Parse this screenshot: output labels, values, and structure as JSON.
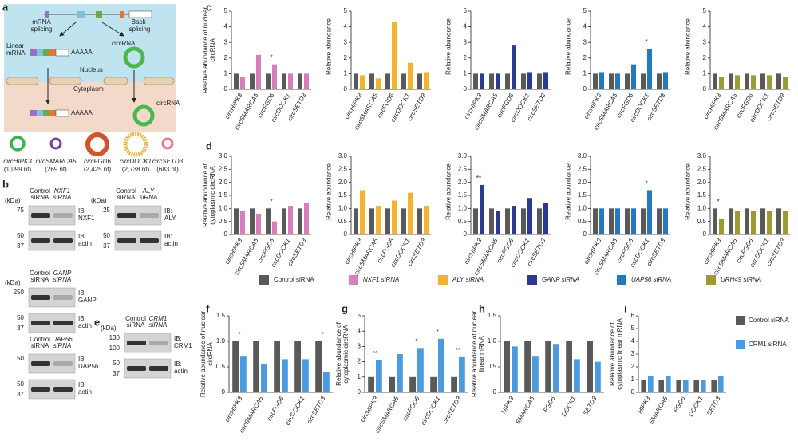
{
  "panel_labels": [
    "a",
    "b",
    "c",
    "d",
    "e",
    "f",
    "g",
    "h",
    "i"
  ],
  "diagram": {
    "mrna_splicing": [
      "mRNA",
      "splicing"
    ],
    "back_splicing": [
      "Back-",
      "splicing"
    ],
    "linear_mrna": [
      "Linear",
      "mRNA"
    ],
    "polya": "AAAAA",
    "circrna": "circRNA",
    "nucleus": "Nucleus",
    "cytoplasm": "Cytoplasm",
    "circles": [
      {
        "name": "circHIPK3",
        "length": "(1,099 nt)"
      },
      {
        "name": "circSMARCA5",
        "length": "(269 nt)"
      },
      {
        "name": "circFGD6",
        "length": "(2,425 nt)"
      },
      {
        "name": "circDOCK1",
        "length": "(2,738 nt)"
      },
      {
        "name": "circSETD3",
        "length": "(683 nt)"
      }
    ]
  },
  "blots": [
    {
      "kda": "(kDa)",
      "lanes": [
        [
          "Control",
          "siRNA"
        ],
        [
          "NXF1",
          "siRNA"
        ]
      ],
      "rows": [
        {
          "markers": [
            75
          ],
          "ib": [
            "IB:",
            "NXF1"
          ]
        },
        {
          "markers": [
            50,
            37
          ],
          "ib": [
            "IB:",
            "actin"
          ]
        }
      ]
    },
    {
      "kda": "(kDa)",
      "lanes": [
        [
          "Control",
          "siRNA"
        ],
        [
          "ALY",
          "siRNA"
        ]
      ],
      "rows": [
        {
          "markers": [
            25
          ],
          "ib": [
            "IB:",
            "ALY"
          ]
        },
        {
          "markers": [
            50,
            37
          ],
          "ib": [
            "IB:",
            "actin"
          ]
        }
      ]
    },
    {
      "kda": "(kDa)",
      "lanes": [
        [
          "Control",
          "siRNA"
        ],
        [
          "GANP",
          "siRNA"
        ]
      ],
      "rows": [
        {
          "markers": [
            250
          ],
          "ib": [
            "IB:",
            "GANP"
          ]
        },
        {
          "markers": [
            50,
            37
          ],
          "ib": [
            "IB:",
            "actin"
          ]
        }
      ]
    },
    {
      "lanes": [
        [
          "Control",
          "siRNA"
        ],
        [
          "UAP56",
          "siRNA"
        ]
      ],
      "rows": [
        {
          "markers": [
            50
          ],
          "ib": [
            "IB:",
            "UAP56"
          ]
        },
        {
          "markers": [
            50,
            37
          ],
          "ib": [
            "IB:",
            "actin"
          ]
        }
      ]
    },
    {
      "kda": "(kDa)",
      "lanes": [
        [
          "Control",
          "siRNA"
        ],
        [
          "CRM1",
          "siRNA"
        ]
      ],
      "rows": [
        {
          "markers": [
            130,
            100
          ],
          "ib": [
            "IB:",
            "CRM1"
          ]
        },
        {
          "markers": [
            50,
            37
          ],
          "ib": [
            "IB:",
            "actin"
          ]
        }
      ]
    }
  ],
  "chart_data": [
    {
      "type": "bar",
      "ylabel": "Relative abundance of nuclear circRNA",
      "categories": [
        "circHIPK3",
        "circSMARCA5",
        "circFGD6",
        "circDOCK1",
        "circSETD3"
      ],
      "ylim": [
        0,
        5
      ],
      "yticks": [
        0,
        1,
        2,
        3,
        4,
        5
      ],
      "series": [
        {
          "name": "Control siRNA",
          "color": "#595959",
          "values": [
            1,
            1,
            1,
            1,
            1
          ]
        },
        {
          "name": "NXF1 siRNA",
          "color": "#d77fb8",
          "values": [
            0.8,
            2.2,
            1.6,
            1.0,
            1.0
          ]
        }
      ],
      "annotations": [
        null,
        null,
        "*",
        null,
        null
      ]
    },
    {
      "type": "bar",
      "ylabel": "Relative abundance",
      "categories": [
        "circHIPK3",
        "circSMARCA5",
        "circFGD6",
        "circDOCK1",
        "circSETD3"
      ],
      "ylim": [
        0,
        5
      ],
      "yticks": [
        0,
        1,
        2,
        3,
        4,
        5
      ],
      "series": [
        {
          "name": "Control siRNA",
          "color": "#595959",
          "values": [
            1,
            1,
            1,
            1,
            1
          ]
        },
        {
          "name": "ALY siRNA",
          "color": "#f0b332",
          "values": [
            0.9,
            0.7,
            4.3,
            1.7,
            1.1
          ]
        }
      ],
      "annotations": [
        null,
        null,
        null,
        null,
        null
      ]
    },
    {
      "type": "bar",
      "ylabel": "Relative abundance",
      "categories": [
        "circHIPK3",
        "circSMARCA5",
        "circFGD6",
        "circDOCK1",
        "circSETD3"
      ],
      "ylim": [
        0,
        5
      ],
      "yticks": [
        0,
        1,
        2,
        3,
        4,
        5
      ],
      "series": [
        {
          "name": "Control siRNA",
          "color": "#595959",
          "values": [
            1,
            1,
            1,
            1,
            1
          ]
        },
        {
          "name": "GANP siRNA",
          "color": "#2e3a92",
          "values": [
            1.0,
            1.0,
            2.8,
            1.1,
            1.1
          ]
        }
      ],
      "annotations": [
        null,
        null,
        null,
        null,
        null
      ]
    },
    {
      "type": "bar",
      "ylabel": "Relative abundance",
      "categories": [
        "circHIPK3",
        "circSMARCA5",
        "circFGD6",
        "circDOCK1",
        "circSETD3"
      ],
      "ylim": [
        0,
        5
      ],
      "yticks": [
        0,
        1,
        2,
        3,
        4,
        5
      ],
      "series": [
        {
          "name": "Control siRNA",
          "color": "#595959",
          "values": [
            1,
            1,
            1,
            1,
            1
          ]
        },
        {
          "name": "UAP56 siRNA",
          "color": "#2479bd",
          "values": [
            1.1,
            1.0,
            1.6,
            2.6,
            1.1
          ]
        }
      ],
      "annotations": [
        null,
        null,
        null,
        "*",
        null
      ]
    },
    {
      "type": "bar",
      "ylabel": "Relative abundance",
      "categories": [
        "circHIPK3",
        "circSMARCA5",
        "circFGD6",
        "circDOCK1",
        "circSETD3"
      ],
      "ylim": [
        0,
        5
      ],
      "yticks": [
        0,
        1,
        2,
        3,
        4,
        5
      ],
      "series": [
        {
          "name": "Control siRNA",
          "color": "#595959",
          "values": [
            1,
            1,
            1,
            1,
            1
          ]
        },
        {
          "name": "URH49 siRNA",
          "color": "#9c9a33",
          "values": [
            0.8,
            0.9,
            0.9,
            0.9,
            0.8
          ]
        }
      ],
      "annotations": [
        null,
        null,
        null,
        null,
        null
      ]
    },
    {
      "type": "bar",
      "ylabel": "Relative abundance of cytoplasmic circRNA",
      "categories": [
        "circHIPK3",
        "circSMARCA5",
        "circFGD6",
        "circDOCK1",
        "circSETD3"
      ],
      "ylim": [
        0,
        3
      ],
      "yticks": [
        0,
        0.5,
        {
          "value": 1,
          "label": "1.0"
        },
        1.5,
        {
          "value": 2,
          "label": "2.0"
        },
        2.5,
        {
          "value": 3,
          "label": "3.0"
        }
      ],
      "series": [
        {
          "name": "Control siRNA",
          "color": "#595959",
          "values": [
            1,
            1,
            1,
            1,
            1
          ]
        },
        {
          "name": "NXF1 siRNA",
          "color": "#d77fb8",
          "values": [
            0.9,
            0.8,
            0.5,
            1.1,
            1.2
          ]
        }
      ],
      "annotations": [
        null,
        null,
        "*",
        null,
        null
      ]
    },
    {
      "type": "bar",
      "ylabel": "Relative abundance",
      "categories": [
        "circHIPK3",
        "circSMARCA5",
        "circFGD6",
        "circDOCK1",
        "circSETD3"
      ],
      "ylim": [
        0,
        3
      ],
      "yticks": [
        0,
        0.5,
        {
          "value": 1,
          "label": "1.0"
        },
        1.5,
        {
          "value": 2,
          "label": "2.0"
        },
        2.5,
        {
          "value": 3,
          "label": "3.0"
        }
      ],
      "series": [
        {
          "name": "Control siRNA",
          "color": "#595959",
          "values": [
            1,
            1,
            1,
            1,
            1
          ]
        },
        {
          "name": "ALY siRNA",
          "color": "#f0b332",
          "values": [
            1.7,
            1.1,
            1.3,
            1.6,
            1.1
          ]
        }
      ],
      "annotations": [
        null,
        null,
        null,
        null,
        null
      ]
    },
    {
      "type": "bar",
      "ylabel": "Relative abundance",
      "categories": [
        "circHIPK3",
        "circSMARCA5",
        "circFGD6",
        "circDOCK1",
        "circSETD3"
      ],
      "ylim": [
        0,
        3
      ],
      "yticks": [
        0,
        0.5,
        {
          "value": 1,
          "label": "1.0"
        },
        1.5,
        {
          "value": 2,
          "label": "2.0"
        },
        2.5,
        {
          "value": 3,
          "label": "3.0"
        }
      ],
      "series": [
        {
          "name": "Control siRNA",
          "color": "#595959",
          "values": [
            1,
            1,
            1,
            1,
            1
          ]
        },
        {
          "name": "GANP siRNA",
          "color": "#2e3a92",
          "values": [
            1.9,
            0.9,
            1.1,
            1.4,
            1.2
          ]
        }
      ],
      "annotations": [
        "**",
        null,
        null,
        null,
        null
      ]
    },
    {
      "type": "bar",
      "ylabel": "Relative abundance",
      "categories": [
        "circHIPK3",
        "circSMARCA5",
        "circFGD6",
        "circDOCK1",
        "circSETD3"
      ],
      "ylim": [
        0,
        3
      ],
      "yticks": [
        0,
        0.5,
        {
          "value": 1,
          "label": "1.0"
        },
        1.5,
        {
          "value": 2,
          "label": "2.0"
        },
        2.5,
        {
          "value": 3,
          "label": "3.0"
        }
      ],
      "series": [
        {
          "name": "Control siRNA",
          "color": "#595959",
          "values": [
            1,
            1,
            1,
            1,
            1
          ]
        },
        {
          "name": "UAP56 siRNA",
          "color": "#2479bd",
          "values": [
            1.0,
            1.0,
            1.0,
            1.7,
            1.0
          ]
        }
      ],
      "annotations": [
        null,
        null,
        null,
        "*",
        null
      ]
    },
    {
      "type": "bar",
      "ylabel": "Relative abundance",
      "categories": [
        "circHIPK3",
        "circSMARCA5",
        "circFGD6",
        "circDOCK1",
        "circSETD3"
      ],
      "ylim": [
        0,
        3
      ],
      "yticks": [
        0,
        0.5,
        {
          "value": 1,
          "label": "1.0"
        },
        1.5,
        {
          "value": 2,
          "label": "2.0"
        },
        2.5,
        {
          "value": 3,
          "label": "3.0"
        }
      ],
      "series": [
        {
          "name": "Control siRNA",
          "color": "#595959",
          "values": [
            1,
            1,
            1,
            1,
            1
          ]
        },
        {
          "name": "URH49 siRNA",
          "color": "#9c9a33",
          "values": [
            0.6,
            0.9,
            0.9,
            0.9,
            0.9
          ]
        }
      ],
      "annotations": [
        "*",
        null,
        null,
        null,
        null
      ]
    },
    {
      "type": "bar",
      "ylabel": "Relative abundance of nuclear circRNA",
      "categories": [
        "circHIPK3",
        "circSMARCA5",
        "circFGD6",
        "circDOCK1",
        "circSETD3"
      ],
      "ylim": [
        0,
        1.5
      ],
      "yticks": [
        0,
        0.5,
        {
          "value": 1,
          "label": "1.0"
        },
        1.5
      ],
      "series": [
        {
          "name": "Control siRNA",
          "color": "#595959",
          "values": [
            1,
            1,
            1,
            1,
            1
          ]
        },
        {
          "name": "CRM1 siRNA",
          "color": "#4a9be0",
          "values": [
            0.7,
            0.55,
            0.65,
            0.65,
            0.4
          ]
        }
      ],
      "annotations": [
        "*",
        null,
        null,
        null,
        "*"
      ]
    },
    {
      "type": "bar",
      "ylabel": "Relative abundance of cytoplasmic circRNA",
      "categories": [
        "circHIPK3",
        "circSMARCA5",
        "circFGD6",
        "circDOCK1",
        "circSETD3"
      ],
      "ylim": [
        0,
        5
      ],
      "yticks": [
        0,
        1,
        2,
        3,
        4,
        5
      ],
      "series": [
        {
          "name": "Control siRNA",
          "color": "#595959",
          "values": [
            1,
            1,
            1,
            1,
            1
          ]
        },
        {
          "name": "CRM1 siRNA",
          "color": "#4a9be0",
          "values": [
            2.1,
            2.5,
            2.9,
            3.5,
            2.3
          ]
        }
      ],
      "annotations": [
        "**",
        null,
        "*",
        "*",
        "**"
      ]
    },
    {
      "type": "bar",
      "ylabel": "Relative abundance of nuclear linear mRNA",
      "categories": [
        "HIPK3",
        "SMARCA5",
        "FGD6",
        "DOCK1",
        "SETD3"
      ],
      "ylim": [
        0,
        1.5
      ],
      "yticks": [
        0,
        0.5,
        {
          "value": 1,
          "label": "1.0"
        },
        1.5
      ],
      "series": [
        {
          "name": "Control siRNA",
          "color": "#595959",
          "values": [
            1,
            1,
            1,
            1,
            1
          ]
        },
        {
          "name": "CRM1 siRNA",
          "color": "#4a9be0",
          "values": [
            0.9,
            0.7,
            0.95,
            0.65,
            0.6
          ]
        }
      ],
      "annotations": [
        null,
        null,
        null,
        null,
        null
      ]
    },
    {
      "type": "bar",
      "ylabel": "Relative abundance of cytoplasmic linear mRNA",
      "categories": [
        "HIPK3",
        "SMARCA5",
        "FGD6",
        "DOCK1",
        "SETD3"
      ],
      "ylim": [
        0,
        6
      ],
      "yticks": [
        0,
        1,
        2,
        3,
        4,
        5,
        6
      ],
      "series": [
        {
          "name": "Control siRNA",
          "color": "#595959",
          "values": [
            1,
            1,
            1,
            1,
            1
          ]
        },
        {
          "name": "CRM1 siRNA",
          "color": "#4a9be0",
          "values": [
            1.3,
            1.3,
            1.0,
            1.0,
            1.3
          ]
        }
      ],
      "annotations": [
        null,
        null,
        null,
        null,
        null
      ]
    }
  ]
}
